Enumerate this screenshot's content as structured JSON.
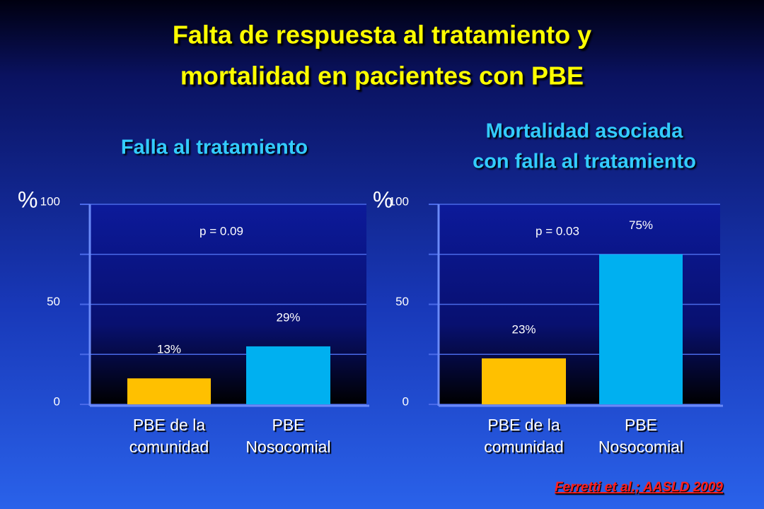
{
  "title": [
    "Falta de respuesta al tratamiento y",
    "mortalidad en pacientes con PBE"
  ],
  "chart_data": [
    {
      "type": "bar",
      "title": [
        "Falla al tratamiento"
      ],
      "y_label": "%",
      "annotation": "p = 0.09",
      "categories": [
        "PBE de la\ncomunidad",
        "PBE\nNosocomial"
      ],
      "values": [
        13,
        29
      ],
      "value_labels": [
        "13%",
        "29%"
      ],
      "colors": [
        "#ffc000",
        "#00b0f0"
      ],
      "ylim": [
        0,
        100
      ],
      "yticks": [
        0,
        50,
        100
      ],
      "minor_yticks": [
        25,
        75
      ],
      "grid": true
    },
    {
      "type": "bar",
      "title": [
        "Mortalidad asociada",
        "con falla al tratamiento"
      ],
      "y_label": "%",
      "annotation": "p = 0.03",
      "categories": [
        "PBE de la\ncomunidad",
        "PBE\nNosocomial"
      ],
      "values": [
        23,
        75
      ],
      "value_labels": [
        "23%",
        "75%"
      ],
      "colors": [
        "#ffc000",
        "#00b0f0"
      ],
      "ylim": [
        0,
        100
      ],
      "yticks": [
        0,
        50,
        100
      ],
      "minor_yticks": [
        25,
        75
      ],
      "grid": true
    }
  ],
  "footer": "Ferretti et al.; AASLD 2009"
}
